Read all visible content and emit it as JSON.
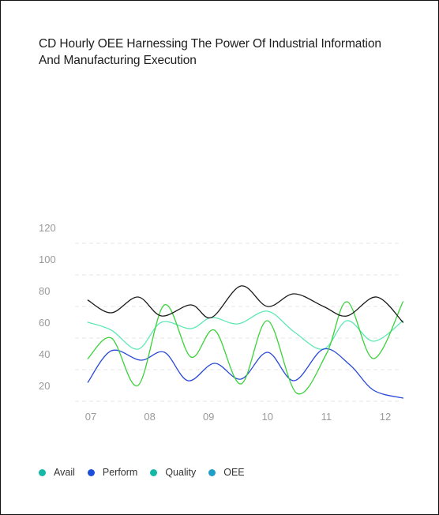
{
  "title": "CD Hourly OEE Harnessing The Power Of Industrial Information And Manufacturing Execution",
  "legend": [
    {
      "label": "Avail",
      "color": "#14b8a6"
    },
    {
      "label": "Perform",
      "color": "#1d4ed8"
    },
    {
      "label": "Quality",
      "color": "#14b8a6"
    },
    {
      "label": "OEE",
      "color": "#1f9ec9"
    }
  ],
  "chart_data": {
    "type": "line",
    "title": "CD Hourly OEE Harnessing The Power Of Industrial Information And Manufacturing Execution",
    "xlabel": "",
    "ylabel": "",
    "ylim": [
      10,
      120
    ],
    "xlim": [
      7,
      12.3
    ],
    "y_ticks": [
      20,
      40,
      60,
      80,
      100,
      120
    ],
    "x_ticks": [
      {
        "value": 7,
        "label": "07"
      },
      {
        "value": 8,
        "label": "08"
      },
      {
        "value": 9,
        "label": "09"
      },
      {
        "value": 10,
        "label": "10"
      },
      {
        "value": 11,
        "label": "11"
      },
      {
        "value": 12,
        "label": "12"
      }
    ],
    "grid": "horizontal dashed",
    "legend_position": "bottom-left",
    "series": [
      {
        "name": "Avail",
        "color": "#5ee8b4",
        "x": [
          6.95,
          7.35,
          7.8,
          8.2,
          8.7,
          9.05,
          9.5,
          10.0,
          10.45,
          10.95,
          11.35,
          11.8,
          12.3
        ],
        "values": [
          70,
          65,
          53,
          70,
          66,
          73,
          69,
          77,
          64,
          53,
          71,
          58,
          71
        ]
      },
      {
        "name": "Perform",
        "color": "#2848d8",
        "x": [
          6.95,
          7.35,
          7.85,
          8.25,
          8.65,
          9.1,
          9.55,
          10.0,
          10.45,
          10.95,
          11.4,
          11.8,
          12.3
        ],
        "values": [
          32,
          52,
          46,
          51,
          33,
          44,
          34,
          51,
          33,
          53,
          43,
          27,
          22
        ]
      },
      {
        "name": "Quality",
        "color": "#3ad23a",
        "x": [
          6.95,
          7.35,
          7.8,
          8.25,
          8.7,
          9.1,
          9.55,
          10.0,
          10.5,
          11.0,
          11.35,
          11.8,
          12.3
        ],
        "values": [
          47,
          60,
          30,
          81,
          48,
          65,
          31,
          71,
          25,
          50,
          83,
          47,
          83
        ]
      },
      {
        "name": "OEE",
        "color": "#1a1a1a",
        "x": [
          6.95,
          7.35,
          7.8,
          8.2,
          8.7,
          9.05,
          9.55,
          10.0,
          10.45,
          10.95,
          11.35,
          11.85,
          12.3
        ],
        "values": [
          84,
          76,
          86,
          74,
          81,
          73,
          93,
          80,
          88,
          80,
          74,
          86,
          70
        ]
      }
    ]
  }
}
